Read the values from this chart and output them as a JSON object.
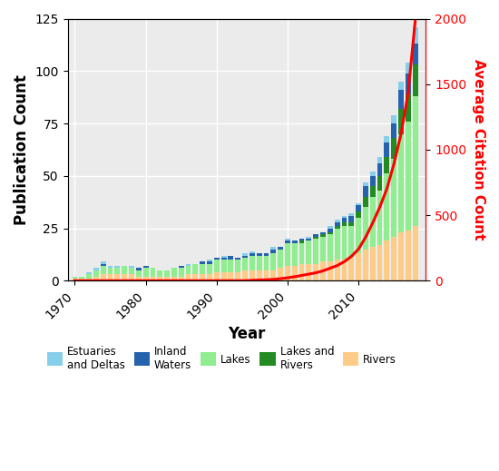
{
  "years": [
    1970,
    1971,
    1972,
    1973,
    1974,
    1975,
    1976,
    1977,
    1978,
    1979,
    1980,
    1981,
    1982,
    1983,
    1984,
    1985,
    1986,
    1987,
    1988,
    1989,
    1990,
    1991,
    1992,
    1993,
    1994,
    1995,
    1996,
    1997,
    1998,
    1999,
    2000,
    2001,
    2002,
    2003,
    2004,
    2005,
    2006,
    2007,
    2008,
    2009,
    2010,
    2011,
    2012,
    2013,
    2014,
    2015,
    2016,
    2017,
    2018
  ],
  "rivers": [
    1,
    1,
    1,
    2,
    3,
    3,
    3,
    3,
    3,
    2,
    2,
    2,
    2,
    2,
    2,
    2,
    3,
    3,
    3,
    3,
    4,
    4,
    4,
    4,
    5,
    5,
    5,
    5,
    5,
    6,
    7,
    7,
    8,
    8,
    8,
    9,
    9,
    10,
    10,
    11,
    13,
    15,
    16,
    17,
    19,
    21,
    23,
    24,
    26
  ],
  "lakes": [
    1,
    1,
    2,
    3,
    4,
    3,
    3,
    4,
    3,
    3,
    4,
    4,
    3,
    3,
    4,
    4,
    4,
    5,
    5,
    5,
    6,
    6,
    6,
    6,
    6,
    7,
    7,
    7,
    8,
    9,
    11,
    11,
    10,
    11,
    12,
    12,
    13,
    15,
    16,
    15,
    17,
    20,
    24,
    26,
    32,
    37,
    47,
    52,
    62
  ],
  "lakes_rivers": [
    0,
    0,
    0,
    0,
    0,
    0,
    0,
    0,
    0,
    0,
    0,
    0,
    0,
    0,
    0,
    0,
    0,
    0,
    0,
    0,
    0,
    0,
    0,
    0,
    0,
    0,
    0,
    0,
    0,
    0,
    0,
    0,
    1,
    0,
    1,
    1,
    1,
    1,
    2,
    2,
    3,
    5,
    5,
    7,
    8,
    10,
    12,
    13,
    15
  ],
  "inland": [
    0,
    0,
    0,
    0,
    1,
    0,
    0,
    0,
    0,
    1,
    1,
    0,
    0,
    0,
    0,
    1,
    0,
    0,
    1,
    1,
    1,
    1,
    2,
    1,
    1,
    1,
    1,
    1,
    2,
    1,
    1,
    1,
    1,
    1,
    1,
    1,
    2,
    2,
    2,
    3,
    3,
    5,
    5,
    6,
    7,
    7,
    9,
    10,
    10
  ],
  "estuaries": [
    0,
    0,
    1,
    1,
    1,
    1,
    1,
    0,
    1,
    0,
    0,
    0,
    0,
    0,
    0,
    0,
    1,
    0,
    0,
    1,
    0,
    1,
    0,
    0,
    1,
    1,
    0,
    0,
    1,
    0,
    1,
    0,
    0,
    1,
    0,
    0,
    1,
    1,
    1,
    1,
    1,
    2,
    2,
    3,
    3,
    4,
    4,
    5,
    8
  ],
  "citations": [
    0,
    0,
    0,
    0,
    0,
    0,
    0,
    0,
    0,
    0,
    0,
    0,
    0,
    0,
    0,
    0,
    0,
    0,
    0,
    0,
    0,
    0,
    0,
    0,
    0,
    3,
    5,
    7,
    10,
    15,
    22,
    30,
    40,
    50,
    60,
    75,
    95,
    115,
    145,
    185,
    240,
    330,
    440,
    560,
    700,
    890,
    1120,
    1430,
    1980
  ],
  "colors": {
    "rivers": "#FFCC88",
    "lakes": "#90EE90",
    "lakes_rivers": "#228B22",
    "inland": "#2563AE",
    "estuaries": "#87CEEB"
  },
  "title_left": "Publication Count",
  "title_right": "Average Citation Count",
  "xlabel": "Year",
  "ylim_left": [
    0,
    125
  ],
  "ylim_right": [
    0,
    2000
  ],
  "yticks_left": [
    0,
    25,
    50,
    75,
    100,
    125
  ],
  "yticks_right": [
    0,
    500,
    1000,
    1500,
    2000
  ],
  "xticks": [
    1970,
    1980,
    1990,
    2000,
    2010
  ],
  "bg_color": "#EBEBEB"
}
